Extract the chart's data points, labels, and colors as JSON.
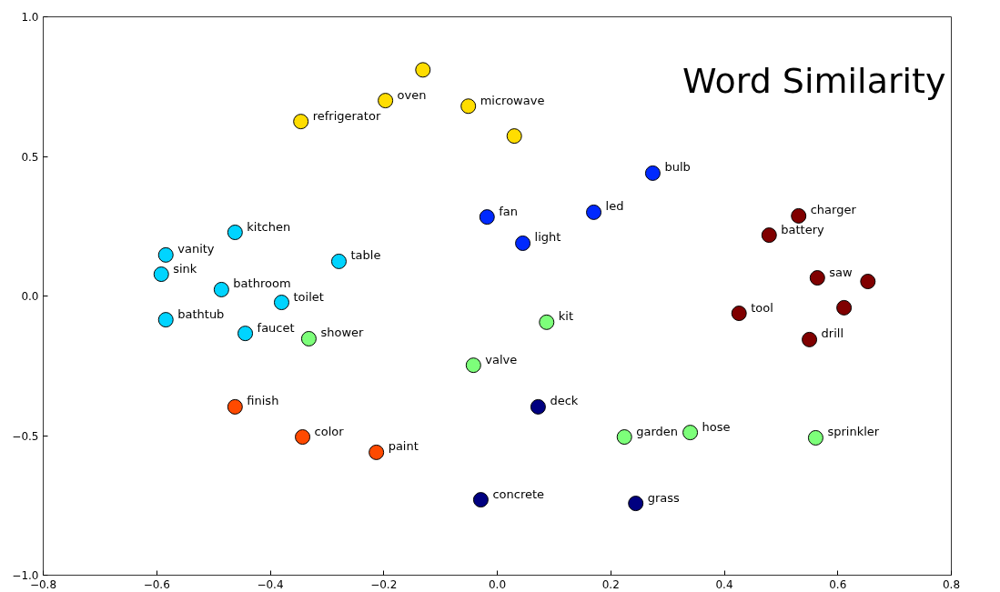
{
  "chart_data": {
    "type": "scatter",
    "title": "Word Similarity",
    "marker": "circle",
    "grid": false,
    "xlim": [
      -0.8,
      0.8
    ],
    "ylim": [
      -1.0,
      1.0
    ],
    "xticks": [
      {
        "value": -0.8,
        "label": "−0.8"
      },
      {
        "value": -0.6,
        "label": "−0.6"
      },
      {
        "value": -0.4,
        "label": "−0.4"
      },
      {
        "value": -0.2,
        "label": "−0.2"
      },
      {
        "value": 0,
        "label": "0.0"
      },
      {
        "value": 0.2,
        "label": "0.2"
      },
      {
        "value": 0.4,
        "label": "0.4"
      },
      {
        "value": 0.6,
        "label": "0.6"
      },
      {
        "value": 0.8,
        "label": "0.8"
      }
    ],
    "yticks": [
      {
        "value": -1,
        "label": "−1.0"
      },
      {
        "value": -0.5,
        "label": "−0.5"
      },
      {
        "value": 0,
        "label": "0.0"
      },
      {
        "value": 0.5,
        "label": "0.5"
      },
      {
        "value": 1,
        "label": "1.0"
      }
    ],
    "series": [
      {
        "color": "#ffdd00",
        "x": [
          -0.131,
          -0.197,
          -0.051,
          -0.346,
          0.03
        ],
        "values": [
          0.81,
          0.7,
          0.68,
          0.625,
          0.573
        ]
      },
      {
        "color": "#0029ff",
        "x": [
          0.274,
          -0.018,
          0.17,
          0.045
        ],
        "values": [
          0.44,
          0.283,
          0.3,
          0.189
        ]
      },
      {
        "color": "#800000",
        "x": [
          0.531,
          0.479,
          0.564,
          0.653,
          0.611,
          0.426,
          0.55
        ],
        "values": [
          0.287,
          0.218,
          0.065,
          0.052,
          -0.042,
          -0.062,
          -0.156
        ]
      },
      {
        "color": "#00d4ff",
        "x": [
          -0.462,
          -0.584,
          -0.592,
          -0.279,
          -0.486,
          -0.38,
          -0.584,
          -0.444
        ],
        "values": [
          0.228,
          0.147,
          0.078,
          0.124,
          0.023,
          -0.023,
          -0.085,
          -0.134
        ]
      },
      {
        "color": "#7dff7a",
        "x": [
          -0.332,
          0.087,
          -0.042,
          0.224,
          0.34,
          0.561
        ],
        "values": [
          -0.153,
          -0.094,
          -0.248,
          -0.505,
          -0.489,
          -0.508
        ]
      },
      {
        "color": "#ff4a00",
        "x": [
          -0.462,
          -0.343,
          -0.213
        ],
        "values": [
          -0.397,
          -0.505,
          -0.56
        ]
      },
      {
        "color": "#000080",
        "x": [
          0.072,
          -0.029,
          0.244
        ],
        "values": [
          -0.397,
          -0.73,
          -0.743
        ]
      }
    ],
    "annotations": [
      {
        "text": "oven",
        "x": -0.197,
        "y": 0.7
      },
      {
        "text": "microwave",
        "x": -0.051,
        "y": 0.68
      },
      {
        "text": "refrigerator",
        "x": -0.346,
        "y": 0.625
      },
      {
        "text": "bulb",
        "x": 0.274,
        "y": 0.44
      },
      {
        "text": "fan",
        "x": -0.018,
        "y": 0.283
      },
      {
        "text": "led",
        "x": 0.17,
        "y": 0.3
      },
      {
        "text": "light",
        "x": 0.045,
        "y": 0.189
      },
      {
        "text": "charger",
        "x": 0.531,
        "y": 0.287
      },
      {
        "text": "battery",
        "x": 0.479,
        "y": 0.218
      },
      {
        "text": "saw",
        "x": 0.564,
        "y": 0.065
      },
      {
        "text": "tool",
        "x": 0.426,
        "y": -0.062
      },
      {
        "text": "drill",
        "x": 0.55,
        "y": -0.156
      },
      {
        "text": "kitchen",
        "x": -0.462,
        "y": 0.228
      },
      {
        "text": "vanity",
        "x": -0.584,
        "y": 0.147
      },
      {
        "text": "sink",
        "x": -0.592,
        "y": 0.078
      },
      {
        "text": "table",
        "x": -0.279,
        "y": 0.124
      },
      {
        "text": "bathroom",
        "x": -0.486,
        "y": 0.023
      },
      {
        "text": "toilet",
        "x": -0.38,
        "y": -0.023
      },
      {
        "text": "bathtub",
        "x": -0.584,
        "y": -0.085
      },
      {
        "text": "faucet",
        "x": -0.444,
        "y": -0.134
      },
      {
        "text": "shower",
        "x": -0.332,
        "y": -0.153
      },
      {
        "text": "kit",
        "x": 0.087,
        "y": -0.094
      },
      {
        "text": "valve",
        "x": -0.042,
        "y": -0.248
      },
      {
        "text": "garden",
        "x": 0.224,
        "y": -0.505
      },
      {
        "text": "hose",
        "x": 0.34,
        "y": -0.489
      },
      {
        "text": "sprinkler",
        "x": 0.561,
        "y": -0.508
      },
      {
        "text": "finish",
        "x": -0.462,
        "y": -0.397
      },
      {
        "text": "color",
        "x": -0.343,
        "y": -0.505
      },
      {
        "text": "paint",
        "x": -0.213,
        "y": -0.56
      },
      {
        "text": "deck",
        "x": 0.072,
        "y": -0.397
      },
      {
        "text": "concrete",
        "x": -0.029,
        "y": -0.73
      },
      {
        "text": "grass",
        "x": 0.244,
        "y": -0.743
      }
    ]
  }
}
